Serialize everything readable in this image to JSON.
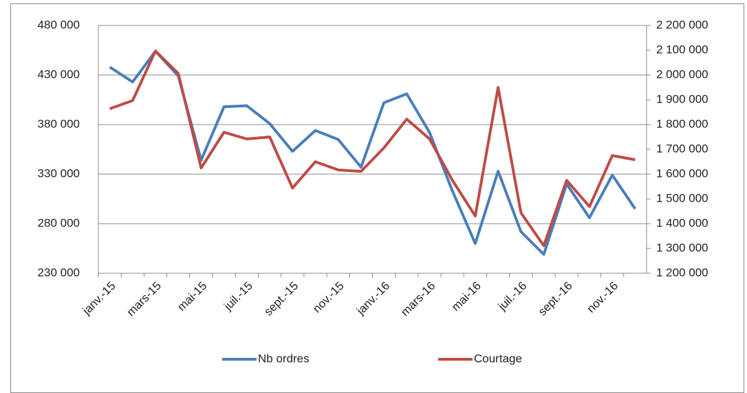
{
  "chart_data": {
    "type": "line",
    "categories": [
      "janv.-15",
      null,
      "mars-15",
      null,
      "mai-15",
      null,
      "juil.-15",
      null,
      "sept.-15",
      null,
      "nov.-15",
      null,
      "janv.-16",
      null,
      "mars-16",
      null,
      "mai-16",
      null,
      "juil.-16",
      null,
      "sept.-16",
      null,
      "nov.-16",
      null
    ],
    "series": [
      {
        "name": "Nb ordres",
        "color": "#4a7ebb",
        "axis": "y",
        "values": [
          438000,
          423000,
          454000,
          429000,
          344000,
          398000,
          399000,
          381000,
          353000,
          374000,
          365000,
          337000,
          402000,
          411000,
          372000,
          313000,
          260000,
          333000,
          272000,
          249000,
          320000,
          286000,
          329000,
          295000
        ]
      },
      {
        "name": "Courtage",
        "color": "#be4b48",
        "axis": "y2",
        "values": [
          1864000,
          1897000,
          2097000,
          2006000,
          1625000,
          1769000,
          1742000,
          1750000,
          1544000,
          1650000,
          1617000,
          1611000,
          1706000,
          1822000,
          1742000,
          1575000,
          1431000,
          1950000,
          1444000,
          1311000,
          1575000,
          1469000,
          1675000,
          1658000
        ]
      }
    ],
    "ylim": [
      230000,
      480000
    ],
    "yticks": [
      {
        "value": 230000,
        "label": "230 000"
      },
      {
        "value": 280000,
        "label": "280 000"
      },
      {
        "value": 330000,
        "label": "330 000"
      },
      {
        "value": 380000,
        "label": "380 000"
      },
      {
        "value": 430000,
        "label": "430 000"
      },
      {
        "value": 480000,
        "label": "480 000"
      }
    ],
    "y2lim": [
      1200000,
      2200000
    ],
    "y2ticks": [
      {
        "value": 1200000,
        "label": "1 200 000"
      },
      {
        "value": 1300000,
        "label": "1 300 000"
      },
      {
        "value": 1400000,
        "label": "1 400 000"
      },
      {
        "value": 1500000,
        "label": "1 500 000"
      },
      {
        "value": 1600000,
        "label": "1 600 000"
      },
      {
        "value": 1700000,
        "label": "1 700 000"
      },
      {
        "value": 1800000,
        "label": "1 800 000"
      },
      {
        "value": 1900000,
        "label": "1 900 000"
      },
      {
        "value": 2000000,
        "label": "2 000 000"
      },
      {
        "value": 2100000,
        "label": "2 100 000"
      },
      {
        "value": 2200000,
        "label": "2 200 000"
      }
    ],
    "grid": true,
    "legend": "bottom"
  }
}
